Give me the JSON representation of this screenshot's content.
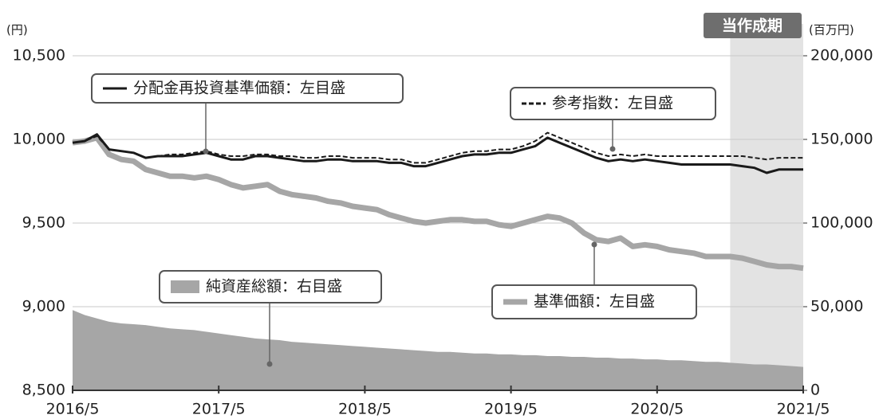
{
  "chart_data": {
    "type": "line",
    "ylabel": "(円)",
    "y2label": "(百万円)",
    "categories": [
      "2016/5",
      null,
      null,
      null,
      null,
      null,
      null,
      null,
      null,
      null,
      null,
      null,
      "2017/5",
      null,
      null,
      null,
      null,
      null,
      null,
      null,
      null,
      null,
      null,
      null,
      "2018/5",
      null,
      null,
      null,
      null,
      null,
      null,
      null,
      null,
      null,
      null,
      null,
      "2019/5",
      null,
      null,
      null,
      null,
      null,
      null,
      null,
      null,
      null,
      null,
      null,
      "2020/5",
      null,
      null,
      null,
      null,
      null,
      null,
      null,
      null,
      null,
      null,
      null,
      "2021/5"
    ],
    "ylim": [
      8500,
      10500
    ],
    "yticks": [
      {
        "value": 8500,
        "label": "8,500"
      },
      {
        "value": 9000,
        "label": "9,000"
      },
      {
        "value": 9500,
        "label": "9,500"
      },
      {
        "value": 10000,
        "label": "10,000"
      },
      {
        "value": 10500,
        "label": "10,500"
      }
    ],
    "y2lim": [
      0,
      200000
    ],
    "y2ticks": [
      0,
      {
        "value": 50000,
        "label": "50,000"
      },
      {
        "value": 100000,
        "label": "100,000"
      },
      {
        "value": 150000,
        "label": "150,000"
      },
      {
        "value": 200000,
        "label": "200,000"
      }
    ],
    "grid": true,
    "highlight": {
      "label": "当作成期",
      "from_index": 54
    },
    "series": [
      {
        "name": "純資産総額：右目盛",
        "color": "#a6a6a6",
        "style": "area",
        "axis": "y2",
        "values": [
          48000,
          45000,
          43000,
          41000,
          40000,
          39500,
          39000,
          38000,
          37000,
          36500,
          36000,
          35000,
          34000,
          33000,
          32000,
          31000,
          30500,
          30000,
          29000,
          28500,
          28000,
          27500,
          27000,
          26500,
          26000,
          25500,
          25000,
          24500,
          24000,
          23500,
          23000,
          23000,
          22500,
          22000,
          22000,
          21500,
          21500,
          21000,
          21000,
          20500,
          20500,
          20000,
          20000,
          19500,
          19500,
          19000,
          19000,
          18500,
          18500,
          18000,
          18000,
          17500,
          17000,
          17000,
          16500,
          16000,
          15500,
          15500,
          15000,
          14500,
          14000
        ]
      },
      {
        "name": "基準価額：左目盛",
        "color": "#a6a6a6",
        "style": "thick",
        "values": [
          9980,
          9990,
          10010,
          9910,
          9880,
          9870,
          9820,
          9800,
          9780,
          9780,
          9770,
          9780,
          9760,
          9730,
          9710,
          9720,
          9730,
          9690,
          9670,
          9660,
          9650,
          9630,
          9620,
          9600,
          9590,
          9580,
          9550,
          9530,
          9510,
          9500,
          9510,
          9520,
          9520,
          9510,
          9510,
          9490,
          9480,
          9500,
          9520,
          9540,
          9530,
          9500,
          9440,
          9400,
          9390,
          9410,
          9360,
          9370,
          9360,
          9340,
          9330,
          9320,
          9300,
          9300,
          9300,
          9290,
          9270,
          9250,
          9240,
          9240,
          9230
        ]
      },
      {
        "name": "参考指数：左目盛",
        "color": "#1a1a1a",
        "style": "dashed",
        "values": [
          9980,
          9990,
          10020,
          9940,
          9930,
          9920,
          9890,
          9900,
          9910,
          9910,
          9920,
          9930,
          9910,
          9900,
          9900,
          9910,
          9910,
          9900,
          9900,
          9890,
          9890,
          9900,
          9900,
          9890,
          9890,
          9890,
          9880,
          9880,
          9860,
          9860,
          9880,
          9900,
          9920,
          9930,
          9930,
          9940,
          9940,
          9960,
          9990,
          10040,
          10010,
          9980,
          9950,
          9920,
          9900,
          9910,
          9900,
          9910,
          9900,
          9900,
          9900,
          9900,
          9900,
          9900,
          9900,
          9900,
          9890,
          9880,
          9890,
          9890,
          9890
        ]
      },
      {
        "name": "分配金再投資基準価額：左目盛",
        "color": "#1a1a1a",
        "style": "solid",
        "values": [
          9980,
          9990,
          10030,
          9940,
          9930,
          9920,
          9890,
          9900,
          9900,
          9900,
          9910,
          9920,
          9900,
          9880,
          9880,
          9900,
          9900,
          9890,
          9880,
          9870,
          9870,
          9880,
          9880,
          9870,
          9870,
          9870,
          9860,
          9860,
          9840,
          9840,
          9860,
          9880,
          9900,
          9910,
          9910,
          9920,
          9920,
          9940,
          9960,
          10010,
          9980,
          9950,
          9920,
          9890,
          9870,
          9880,
          9870,
          9880,
          9870,
          9860,
          9850,
          9850,
          9850,
          9850,
          9850,
          9840,
          9830,
          9800,
          9820,
          9820,
          9820
        ]
      }
    ]
  }
}
